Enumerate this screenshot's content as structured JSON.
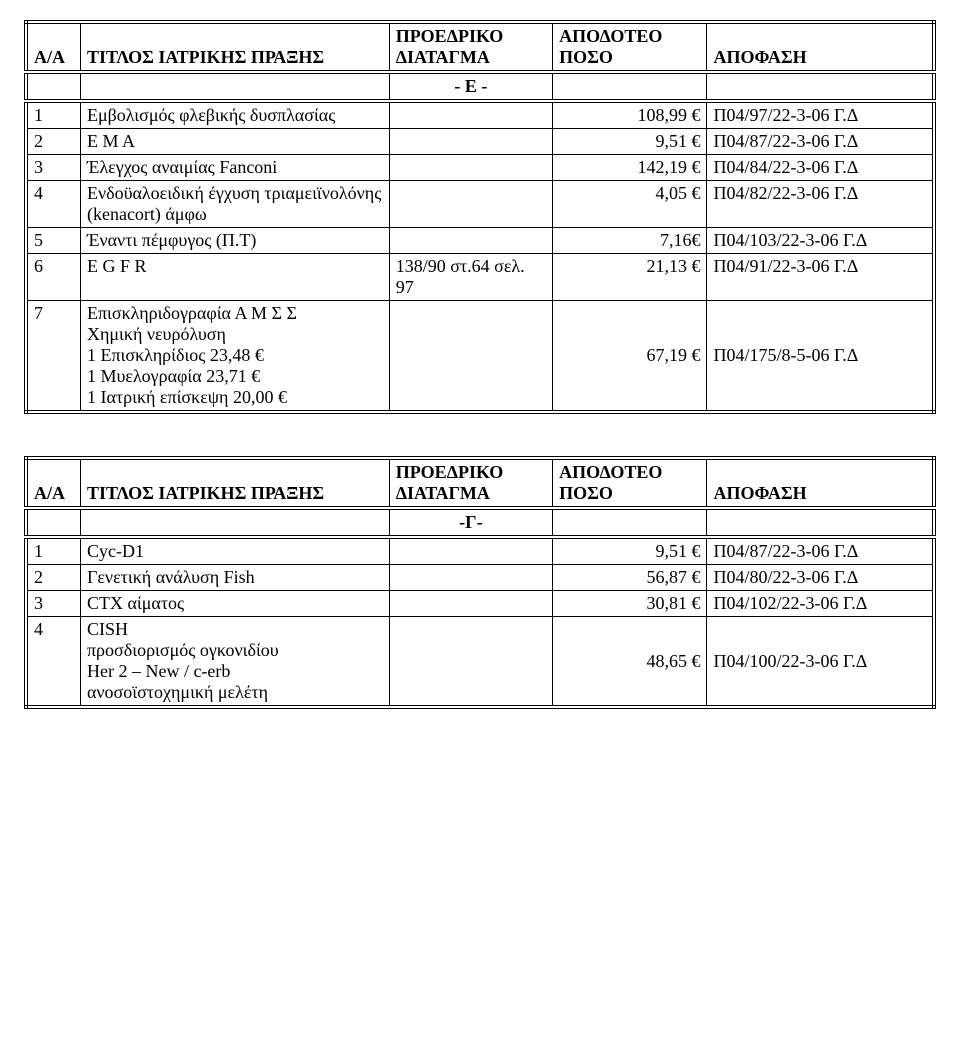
{
  "table1": {
    "headers": [
      "Α/Α",
      "ΤΙΤΛΟΣ ΙΑΤΡΙΚΗΣ  ΠΡΑΞΗΣ",
      "ΠΡΟΕΔΡΙΚΟ ΔΙΑΤΑΓΜΑ",
      "ΑΠΟΔΟΤΕΟ ΠΟΣΟ",
      "ΑΠΟΦΑΣΗ"
    ],
    "separator": "- Ε -",
    "rows": [
      {
        "n": "1",
        "title": "Εμβολισμός φλεβικής δυσπλασίας",
        "decree": "",
        "amount": "108,99 €",
        "decision": "Π04/97/22-3-06 Γ.Δ"
      },
      {
        "n": "2",
        "title": "Ε Μ Α",
        "decree": "",
        "amount": "9,51 €",
        "decision": "Π04/87/22-3-06 Γ.Δ"
      },
      {
        "n": "3",
        "title": "Έλεγχος αναιμίας Fanconi",
        "decree": "",
        "amount": "142,19 €",
        "decision": "Π04/84/22-3-06 Γ.Δ"
      },
      {
        "n": "4",
        "title": "Ενδοϋαλοειδική έγχυση τριαμειϊνολόνης (kenacort) άμφω",
        "decree": "",
        "amount": "4,05 €",
        "decision": "Π04/82/22-3-06 Γ.Δ"
      },
      {
        "n": "5",
        "title": "Έναντι πέμφυγος (Π.Τ)",
        "decree": "",
        "amount": "7,16€",
        "decision": "Π04/103/22-3-06 Γ.Δ"
      },
      {
        "n": "6",
        "title": "E G F R",
        "decree": "138/90 στ.64 σελ. 97",
        "amount": "21,13 €",
        "decision": "Π04/91/22-3-06 Γ.Δ"
      },
      {
        "n": "7",
        "title": "Επισκληριδογραφία  Α Μ Σ Σ\nΧημική νευρόλυση\n1 Επισκληρίδιος  23,48 €\n1 Μυελογραφία    23,71 €\n1 Ιατρική επίσκεψη  20,00 €",
        "decree": "",
        "amount": "67,19 €",
        "decision": "Π04/175/8-5-06 Γ.Δ"
      }
    ]
  },
  "table2": {
    "headers": [
      "Α/Α",
      "ΤΙΤΛΟΣ ΙΑΤΡΙΚΗΣ  ΠΡΑΞΗΣ",
      "ΠΡΟΕΔΡΙΚΟ ΔΙΑΤΑΓΜΑ",
      "ΑΠΟΔΟΤΕΟ ΠΟΣΟ",
      "ΑΠΟΦΑΣΗ"
    ],
    "separator": "-Γ-",
    "rows": [
      {
        "n": "1",
        "title": "Cyc-D1",
        "decree": "",
        "amount": "9,51 €",
        "decision": "Π04/87/22-3-06 Γ.Δ"
      },
      {
        "n": "2",
        "title": "Γενετική ανάλυση Fish",
        "decree": "",
        "amount": "56,87 €",
        "decision": "Π04/80/22-3-06 Γ.Δ"
      },
      {
        "n": "3",
        "title": "CTX αίματος",
        "decree": "",
        "amount": "30,81 €",
        "decision": "Π04/102/22-3-06 Γ.Δ"
      },
      {
        "n": "4",
        "title": "CISH\nπροσδιορισμός ογκονιδίου\n Her 2 – New / c-erb\nανοσοϊστοχημική μελέτη",
        "decree": "",
        "amount": "48,65 €",
        "decision": "Π04/100/22-3-06 Γ.Δ"
      }
    ]
  },
  "style": {
    "font_family": "Times New Roman",
    "font_size_pt": 14,
    "text_color": "#000000",
    "background_color": "#ffffff",
    "border_color": "#000000"
  }
}
